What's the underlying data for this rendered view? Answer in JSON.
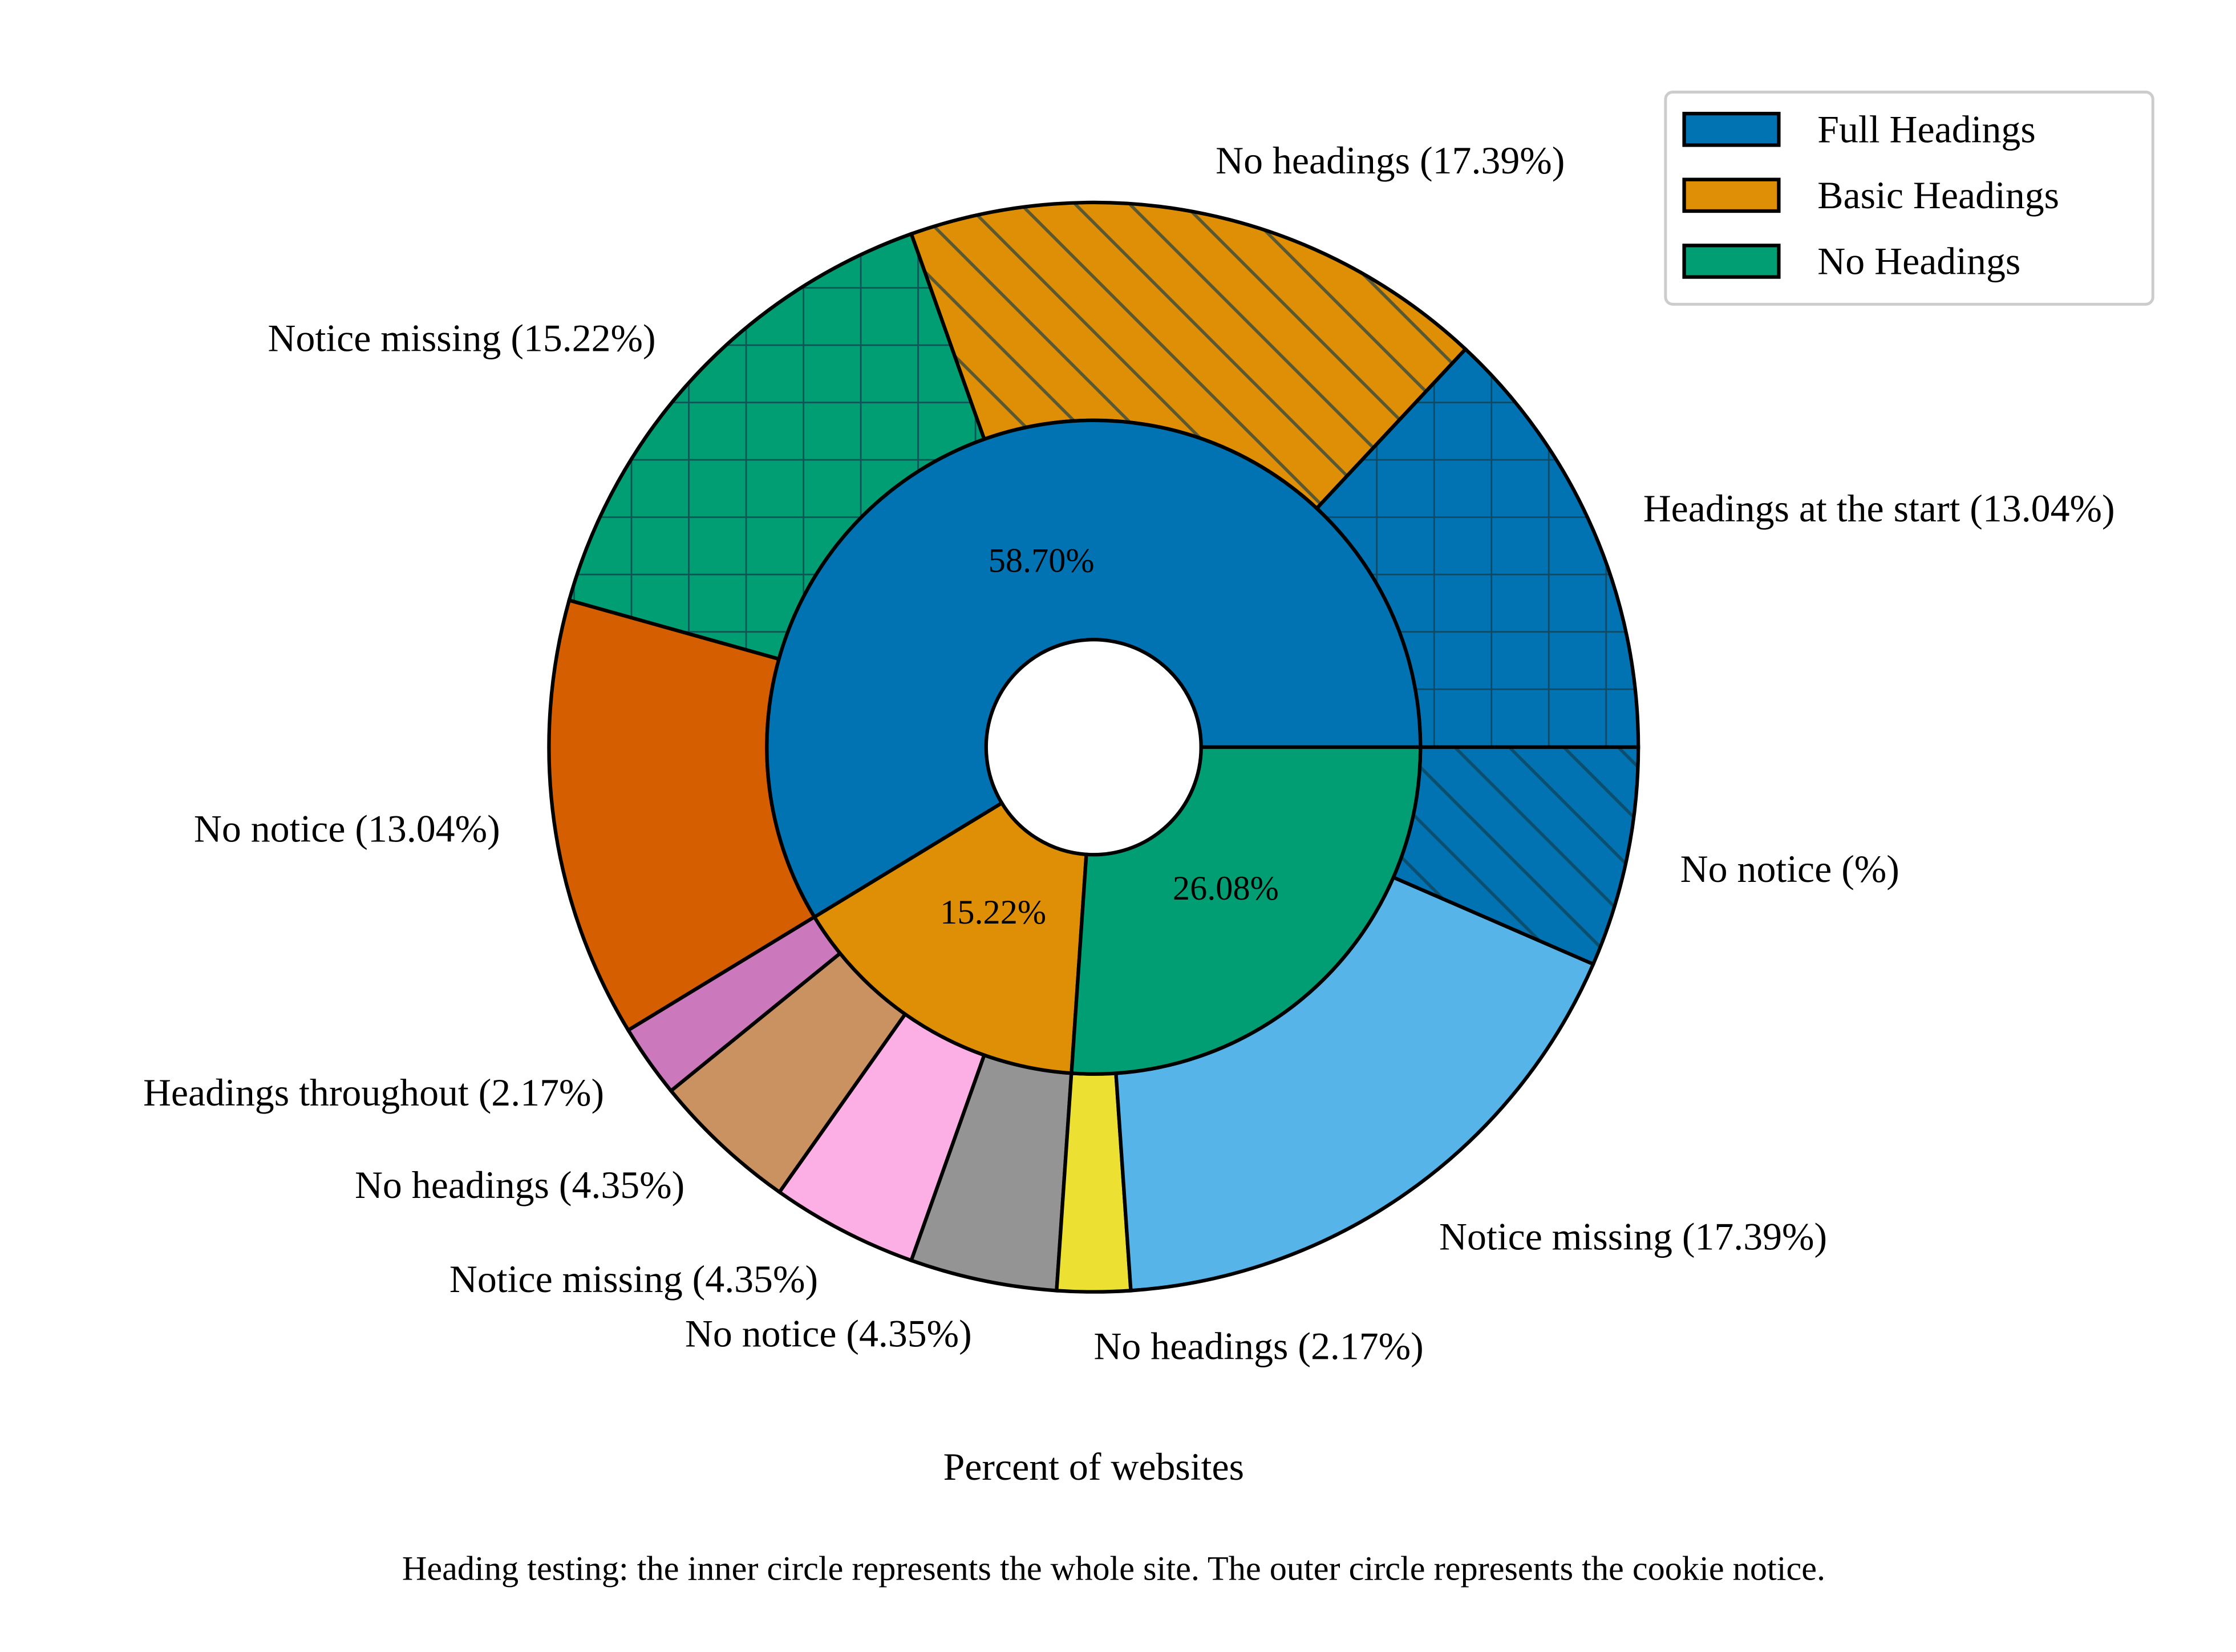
{
  "chart_data": {
    "type": "pie",
    "subtype": "nested donut",
    "xlabel": "Percent of websites",
    "caption": "Heading testing: the inner circle represents the whole site. The outer circle represents the cookie notice.",
    "legend": {
      "placement": "top-right",
      "entries": [
        {
          "label": "Full Headings",
          "color": "#0173b2"
        },
        {
          "label": "Basic Headings",
          "color": "#de8f05"
        },
        {
          "label": "No Headings",
          "color": "#029e73"
        }
      ]
    },
    "inner": [
      {
        "name": "Full Headings",
        "value": 58.7,
        "label": "58.70%",
        "color": "#0173b2"
      },
      {
        "name": "Basic Headings",
        "value": 15.22,
        "label": "15.22%",
        "color": "#de8f05"
      },
      {
        "name": "No Headings",
        "value": 26.08,
        "label": "26.08%",
        "color": "#029e73"
      }
    ],
    "outer": [
      {
        "label": "Headings at the start (13.04%)",
        "value": 13.04,
        "color": "#0173b2",
        "hatch": "grid"
      },
      {
        "label": "No headings (17.39%)",
        "value": 17.39,
        "color": "#de8f05",
        "hatch": "diagonal"
      },
      {
        "label": "Notice missing (15.22%)",
        "value": 15.22,
        "color": "#029e73",
        "hatch": "grid"
      },
      {
        "label": "No notice (13.04%)",
        "value": 13.04,
        "color": "#d55e00",
        "hatch": "none"
      },
      {
        "label": "Headings throughout (2.17%)",
        "value": 2.17,
        "color": "#cc78bc",
        "hatch": "none"
      },
      {
        "label": "No headings (4.35%)",
        "value": 4.35,
        "color": "#ca9161",
        "hatch": "none"
      },
      {
        "label": "Notice missing (4.35%)",
        "value": 4.35,
        "color": "#fbafe4",
        "hatch": "none"
      },
      {
        "label": "No notice (4.35%)",
        "value": 4.35,
        "color": "#949494",
        "hatch": "none"
      },
      {
        "label": "No headings (2.17%)",
        "value": 2.17,
        "color": "#ece133",
        "hatch": "none"
      },
      {
        "label": "Notice missing (17.39%)",
        "value": 17.39,
        "color": "#56b4e9",
        "hatch": "none"
      },
      {
        "label": "No notice (%)",
        "value": 6.52,
        "color": "#0173b2",
        "hatch": "diagonal"
      }
    ]
  }
}
